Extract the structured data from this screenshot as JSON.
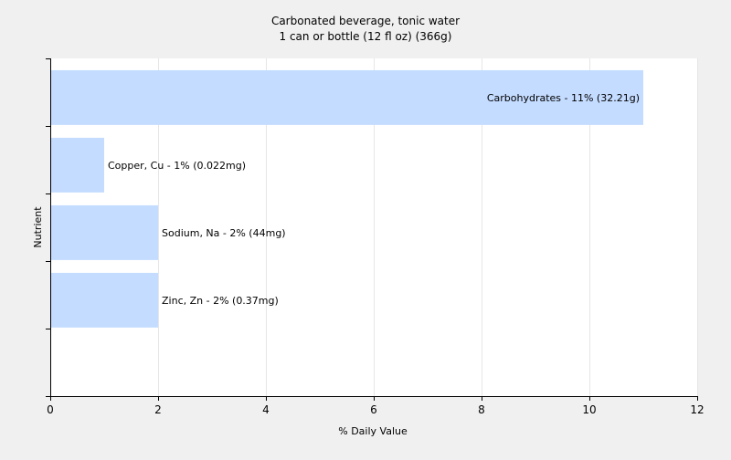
{
  "chart_data": {
    "type": "bar",
    "orientation": "horizontal",
    "title": "Carbonated beverage, tonic water",
    "subtitle": "1 can or bottle (12 fl oz) (366g)",
    "xlabel": "% Daily Value",
    "ylabel": "Nutrient",
    "xlim": [
      0,
      12
    ],
    "xticks": [
      0,
      2,
      4,
      6,
      8,
      10,
      12
    ],
    "grid": true,
    "bar_color": "#c4dcff",
    "categories": [
      "Carbohydrates",
      "Copper, Cu",
      "Sodium, Na",
      "Zinc, Zn"
    ],
    "values": [
      11,
      1,
      2,
      2
    ],
    "labels": [
      "Carbohydrates - 11% (32.21g)",
      "Copper, Cu - 1% (0.022mg)",
      "Sodium, Na - 2% (44mg)",
      "Zinc, Zn - 2% (0.37mg)"
    ]
  }
}
